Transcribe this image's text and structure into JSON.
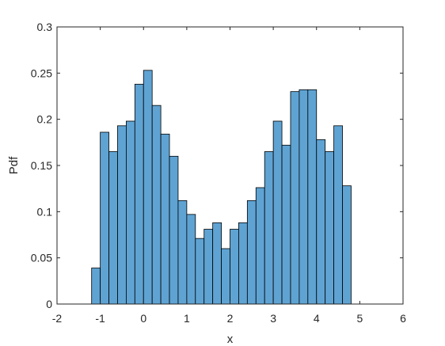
{
  "chart_data": {
    "type": "bar",
    "subtype": "histogram",
    "title": "",
    "xlabel": "x",
    "ylabel": "Pdf",
    "xlim": [
      -2,
      6
    ],
    "ylim": [
      0,
      0.3
    ],
    "xticks": [
      -2,
      -1,
      0,
      1,
      2,
      3,
      4,
      5,
      6
    ],
    "yticks": [
      0,
      0.05,
      0.1,
      0.15,
      0.2,
      0.25,
      0.3
    ],
    "xtick_labels": [
      "-2",
      "-1",
      "0",
      "1",
      "2",
      "3",
      "4",
      "5",
      "6"
    ],
    "ytick_labels": [
      "0",
      "0.05",
      "0.1",
      "0.15",
      "0.2",
      "0.25",
      "0.3"
    ],
    "grid": false,
    "box": true,
    "bar_color": "#5fa3d3",
    "edge_color": "#000000",
    "bin_width": 0.2,
    "bin_edges_start": -1.2,
    "values": [
      0.039,
      0.186,
      0.165,
      0.193,
      0.198,
      0.238,
      0.253,
      0.215,
      0.184,
      0.16,
      0.112,
      0.097,
      0.071,
      0.081,
      0.088,
      0.06,
      0.081,
      0.088,
      0.112,
      0.126,
      0.165,
      0.198,
      0.172,
      0.23,
      0.232,
      0.232,
      0.178,
      0.165,
      0.193,
      0.128
    ]
  }
}
